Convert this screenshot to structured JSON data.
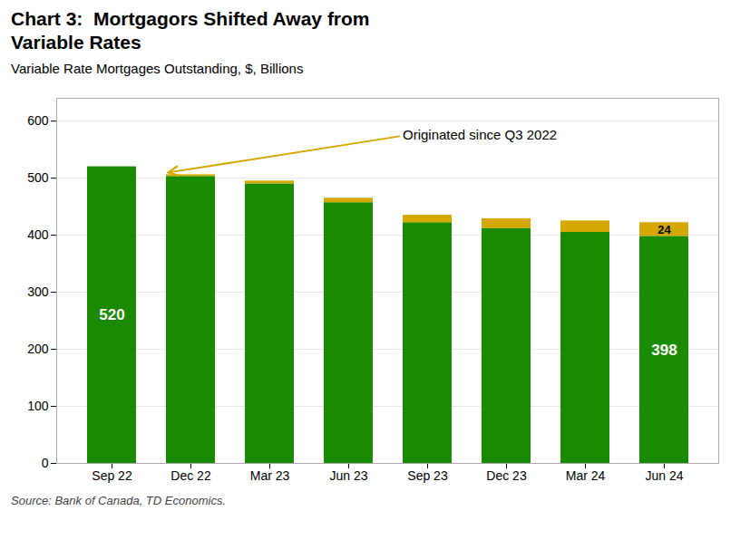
{
  "chart_data": {
    "type": "bar",
    "title": "Chart 3:  Mortgagors Shifted Away from\nVariable Rates",
    "subtitle": "Variable Rate Mortgages Outstanding, $, Billions",
    "source": "Source: Bank of Canada, TD Economics.",
    "categories": [
      "Sep 22",
      "Dec 22",
      "Mar 23",
      "Jun 23",
      "Sep 23",
      "Dec 23",
      "Mar 24",
      "Jun 24"
    ],
    "series": [
      {
        "color": "#1a8a00",
        "values": [
          520,
          503,
          490,
          457,
          422,
          412,
          405,
          398
        ],
        "value_labels": [
          "520",
          null,
          null,
          null,
          null,
          null,
          null,
          "398"
        ]
      },
      {
        "color": "#d4a800",
        "values": [
          0,
          3,
          5,
          8,
          13,
          17,
          20,
          24
        ],
        "value_labels": [
          null,
          null,
          null,
          null,
          null,
          null,
          null,
          "24"
        ]
      }
    ],
    "stacked": true,
    "ylim": [
      0,
      640
    ],
    "yticks": [
      0,
      100,
      200,
      300,
      400,
      500,
      600
    ],
    "grid": true,
    "annotations": [
      {
        "text": "Originated since Q3 2022",
        "category": "Dec 22"
      }
    ]
  }
}
